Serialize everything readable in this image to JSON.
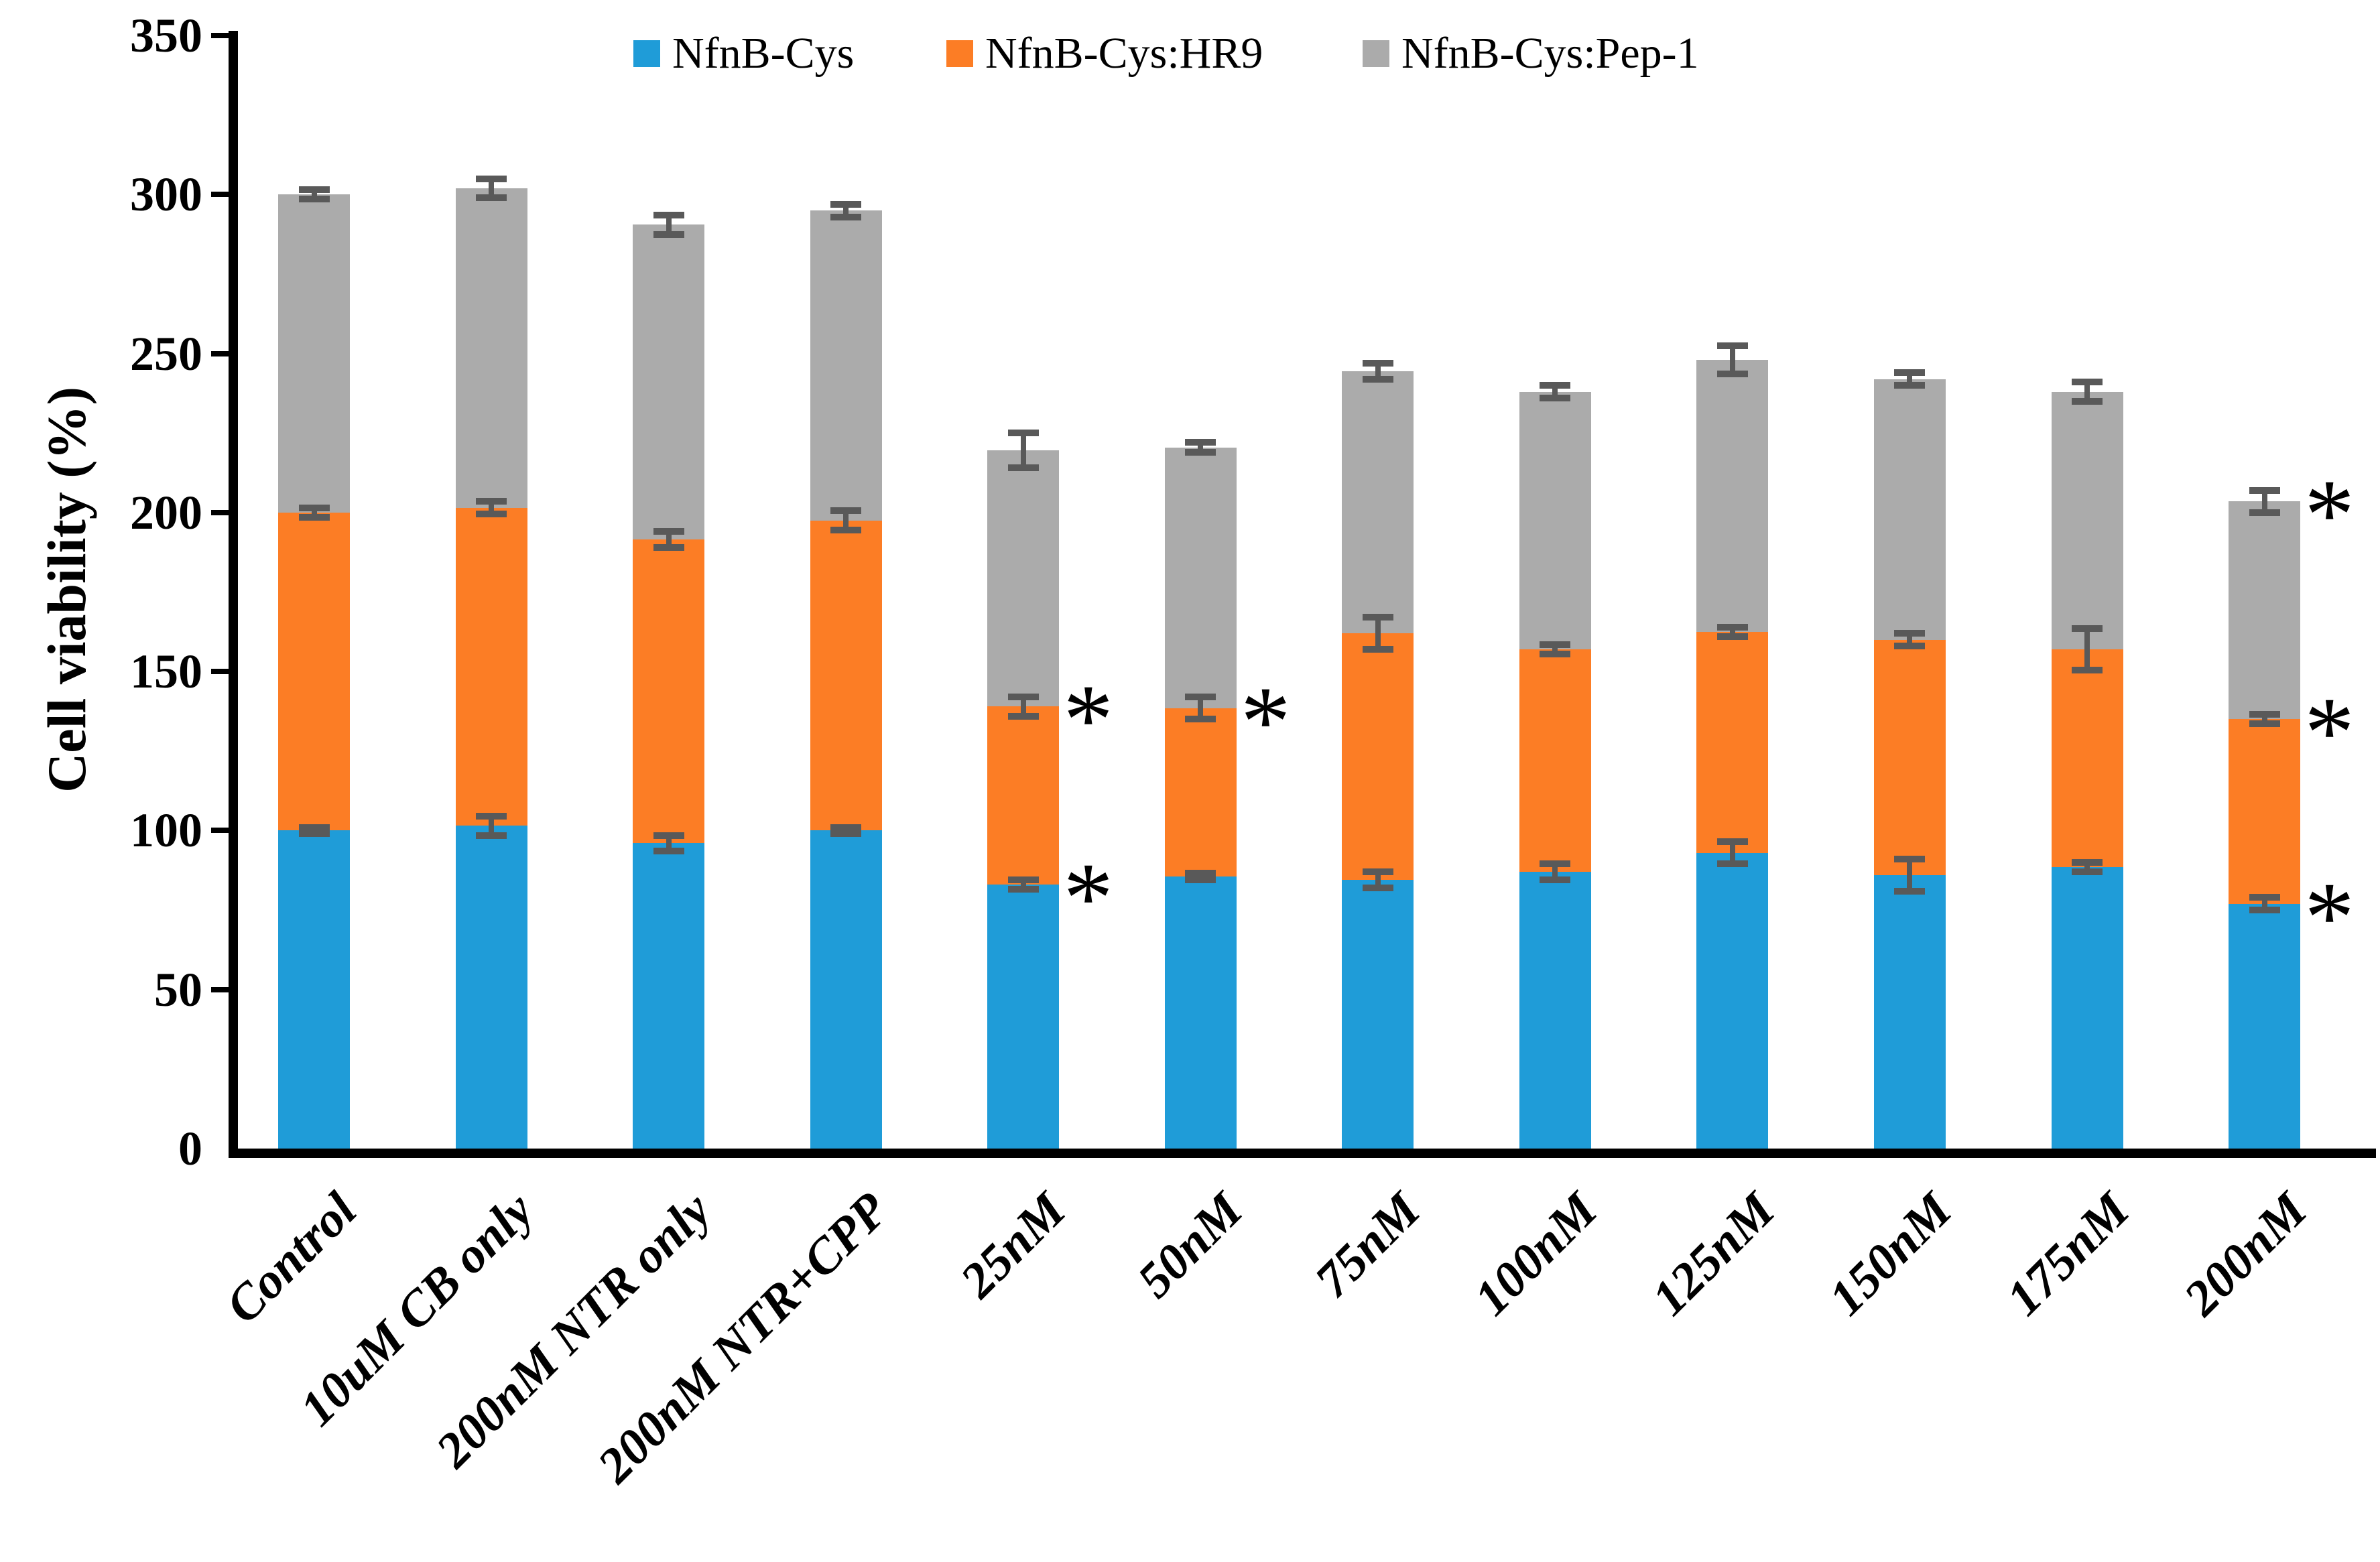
{
  "figure": {
    "background": "#FFFFFF",
    "axis_color": "#000000"
  },
  "chart_data": {
    "type": "bar",
    "stacked": true,
    "title": "",
    "xlabel": "",
    "ylabel": "Cell viability (%)",
    "ylim": [
      0,
      350
    ],
    "y_ticks": [
      0,
      50,
      100,
      150,
      200,
      250,
      300,
      350
    ],
    "grid": false,
    "legend_position": "top",
    "categories": [
      "Control",
      "10uM CB only",
      "200nM NTR only",
      "200nM NTR+CPP",
      "25nM",
      "50nM",
      "75nM",
      "100nM",
      "125nM",
      "150nM",
      "175nM",
      "200nM"
    ],
    "series": [
      {
        "name": "NfnB-Cys",
        "color": "#1F9CD8",
        "values": [
          100,
          101.5,
          96,
          100,
          83,
          85.5,
          84.5,
          87,
          93,
          86,
          88.5,
          77
        ],
        "errors": [
          1,
          3,
          2.5,
          1,
          1.5,
          1,
          2.5,
          2.5,
          3.5,
          5,
          1.5,
          2
        ],
        "stack_tops": [
          100,
          101.5,
          96,
          100,
          83,
          85.5,
          84.5,
          87,
          93,
          86,
          88.5,
          77
        ]
      },
      {
        "name": "NfnB-Cys:HR9",
        "color": "#FC7D25",
        "values": [
          100,
          100,
          95.5,
          97.5,
          56,
          53,
          77.5,
          70,
          69.5,
          74,
          68.5,
          58
        ],
        "errors": [
          1.5,
          2,
          2.5,
          3,
          3,
          3.5,
          5,
          1.5,
          1.5,
          2,
          6.5,
          1.5
        ],
        "stack_tops": [
          200,
          201.5,
          191.5,
          197.5,
          139,
          138.5,
          162,
          157,
          162.5,
          160,
          157,
          135
        ]
      },
      {
        "name": "NfnB-Cys:Pep-1",
        "color": "#ABABAB",
        "values": [
          100,
          100.5,
          99,
          97.5,
          80.5,
          82,
          82.5,
          81,
          85.5,
          82,
          81,
          68.5
        ],
        "errors": [
          1.5,
          3,
          3,
          2,
          5.5,
          1.5,
          2.5,
          2,
          4.5,
          2,
          3,
          3.5
        ],
        "stack_tops": [
          300,
          302,
          290.5,
          295,
          219.5,
          220.5,
          244.5,
          238,
          248,
          242,
          238,
          203.5
        ]
      }
    ],
    "error_bar_color": "#595959",
    "significance_marker": "*",
    "significance": [
      {
        "category": "25nM",
        "series": "NfnB-Cys"
      },
      {
        "category": "25nM",
        "series": "NfnB-Cys:HR9"
      },
      {
        "category": "50nM",
        "series": "NfnB-Cys:HR9"
      },
      {
        "category": "200nM",
        "series": "NfnB-Cys"
      },
      {
        "category": "200nM",
        "series": "NfnB-Cys:HR9"
      },
      {
        "category": "200nM",
        "series": "NfnB-Cys:Pep-1"
      }
    ]
  }
}
